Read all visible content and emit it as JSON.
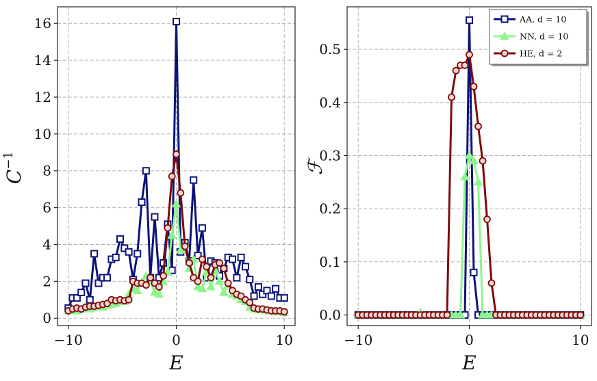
{
  "chart_data": [
    {
      "type": "line",
      "xlabel": "E",
      "ylabel": "C−1",
      "xlim": [
        -11,
        11
      ],
      "ylim": [
        -0.4,
        16.9
      ],
      "xticks": [
        -10,
        0,
        10
      ],
      "xtick_labels": [
        "−10",
        "0",
        "10"
      ],
      "yticks": [
        0,
        2,
        4,
        6,
        8,
        10,
        12,
        14,
        16
      ],
      "ytick_labels": [
        "0",
        "2",
        "4",
        "6",
        "8",
        "10",
        "12",
        "14",
        "16"
      ],
      "grid": true,
      "x": [
        -10,
        -9.6,
        -9.2,
        -8.8,
        -8.4,
        -8.0,
        -7.6,
        -7.2,
        -6.8,
        -6.4,
        -6.0,
        -5.6,
        -5.2,
        -4.8,
        -4.4,
        -4.0,
        -3.6,
        -3.2,
        -2.8,
        -2.4,
        -2.0,
        -1.6,
        -1.2,
        -0.8,
        -0.4,
        0.0,
        0.4,
        0.8,
        1.2,
        1.6,
        2.0,
        2.4,
        2.8,
        3.2,
        3.6,
        4.0,
        4.4,
        4.8,
        5.2,
        5.6,
        6.0,
        6.4,
        6.8,
        7.2,
        7.6,
        8.0,
        8.4,
        8.8,
        9.2,
        9.6,
        10.0
      ],
      "series": [
        {
          "name": "AA, d = 10",
          "color": "#0c137a",
          "marker": "square",
          "values": [
            0.55,
            1.1,
            1.1,
            1.4,
            1.9,
            1.0,
            3.5,
            1.9,
            2.2,
            2.2,
            3.2,
            3.3,
            4.3,
            3.8,
            3.6,
            2.1,
            3.5,
            6.3,
            8.0,
            2.2,
            5.5,
            2.2,
            3.0,
            5.1,
            2.6,
            16.1,
            3.6,
            4.1,
            3.1,
            7.5,
            3.4,
            4.9,
            2.2,
            3.1,
            3.0,
            2.3,
            2.7,
            3.3,
            3.2,
            2.2,
            3.3,
            2.8,
            2.1,
            1.2,
            1.7,
            1.3,
            1.5,
            1.2,
            1.6,
            1.1,
            1.1
          ]
        },
        {
          "name": "NN, d = 10",
          "color": "#8ef58c",
          "marker": "triangle",
          "values": [
            0.4,
            0.45,
            0.4,
            0.5,
            0.55,
            0.5,
            0.6,
            0.6,
            0.6,
            0.7,
            0.75,
            0.8,
            0.9,
            0.9,
            1.3,
            1.6,
            1.5,
            1.9,
            2.3,
            2.0,
            1.4,
            1.3,
            2.0,
            2.5,
            4.5,
            6.2,
            3.7,
            4.0,
            2.7,
            3.2,
            1.7,
            1.6,
            2.5,
            1.7,
            2.6,
            2.0,
            1.4,
            1.8,
            1.3,
            1.2,
            1.0,
            0.9,
            0.6,
            0.5,
            0.45,
            0.45,
            0.4,
            0.4,
            0.35,
            0.35,
            0.3
          ]
        },
        {
          "name": "HE, d = 2",
          "color": "#7e0a0a",
          "marker": "circle",
          "values": [
            0.4,
            0.5,
            0.55,
            0.5,
            0.6,
            0.65,
            0.65,
            0.7,
            0.75,
            0.8,
            1.0,
            0.95,
            1.0,
            0.95,
            1.0,
            2.0,
            1.9,
            1.9,
            1.8,
            2.2,
            1.9,
            1.7,
            2.3,
            4.9,
            7.7,
            8.9,
            6.8,
            3.9,
            3.0,
            2.2,
            2.0,
            3.2,
            2.8,
            2.2,
            2.9,
            3.0,
            2.7,
            1.9,
            1.5,
            1.3,
            1.2,
            1.0,
            0.85,
            0.55,
            0.5,
            0.5,
            0.45,
            0.4,
            0.4,
            0.4,
            0.35
          ]
        }
      ]
    },
    {
      "type": "line",
      "xlabel": "E",
      "ylabel": "ℱ",
      "xlim": [
        -11,
        11
      ],
      "ylim": [
        -0.02,
        0.58
      ],
      "xticks": [
        -10,
        0,
        10
      ],
      "xtick_labels": [
        "−10",
        "0",
        "10"
      ],
      "yticks": [
        0.0,
        0.1,
        0.2,
        0.3,
        0.4,
        0.5
      ],
      "ytick_labels": [
        "0.0",
        "0.1",
        "0.2",
        "0.3",
        "0.4",
        "0.5"
      ],
      "grid": true,
      "legend_position": "top-right",
      "x": [
        -10,
        -9.6,
        -9.2,
        -8.8,
        -8.4,
        -8.0,
        -7.6,
        -7.2,
        -6.8,
        -6.4,
        -6.0,
        -5.6,
        -5.2,
        -4.8,
        -4.4,
        -4.0,
        -3.6,
        -3.2,
        -2.8,
        -2.4,
        -2.0,
        -1.6,
        -1.2,
        -0.8,
        -0.4,
        0.0,
        0.4,
        0.8,
        1.2,
        1.6,
        2.0,
        2.4,
        2.8,
        3.2,
        3.6,
        4.0,
        4.4,
        4.8,
        5.2,
        5.6,
        6.0,
        6.4,
        6.8,
        7.2,
        7.6,
        8.0,
        8.4,
        8.8,
        9.2,
        9.6,
        10.0
      ],
      "series": [
        {
          "name": "AA, d = 10",
          "color": "#0c137a",
          "marker": "square",
          "values": [
            0,
            0,
            0,
            0,
            0,
            0,
            0,
            0,
            0,
            0,
            0,
            0,
            0,
            0,
            0,
            0,
            0,
            0,
            0,
            0,
            0,
            0,
            0,
            0,
            0,
            0.555,
            0.08,
            0,
            0,
            0,
            0,
            0,
            0,
            0,
            0,
            0,
            0,
            0,
            0,
            0,
            0,
            0,
            0,
            0,
            0,
            0,
            0,
            0,
            0,
            0,
            0
          ]
        },
        {
          "name": "NN, d = 10",
          "color": "#8ef58c",
          "marker": "triangle",
          "values": [
            0,
            0,
            0,
            0,
            0,
            0,
            0,
            0,
            0,
            0,
            0,
            0,
            0,
            0,
            0.005,
            0,
            0,
            0,
            0,
            0,
            0,
            0,
            0,
            0,
            0.26,
            0.3,
            0.29,
            0.25,
            0,
            0,
            0,
            0,
            0,
            0,
            0,
            0,
            0,
            0,
            0,
            0,
            0,
            0,
            0,
            0,
            0,
            0,
            0,
            0,
            0,
            0,
            0
          ]
        },
        {
          "name": "HE, d = 2",
          "color": "#7e0a0a",
          "marker": "circle",
          "values": [
            0,
            0,
            0,
            0,
            0,
            0,
            0,
            0,
            0,
            0,
            0,
            0,
            0,
            0,
            0,
            0,
            0,
            0,
            0,
            0,
            0,
            0.41,
            0.46,
            0.47,
            0.47,
            0.49,
            0.43,
            0.355,
            0.29,
            0.18,
            0.06,
            0,
            0,
            0,
            0,
            0,
            0,
            0,
            0,
            0,
            0,
            0,
            0,
            0,
            0,
            0,
            0,
            0,
            0,
            0,
            0
          ]
        }
      ]
    }
  ]
}
